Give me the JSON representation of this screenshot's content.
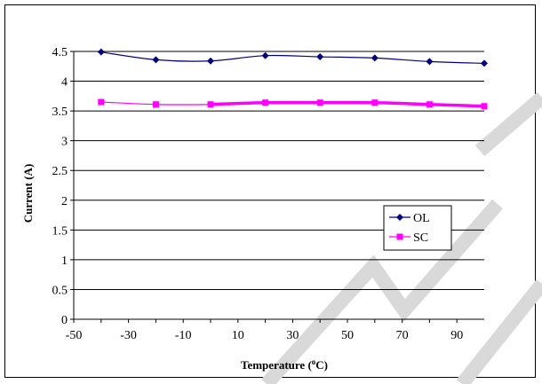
{
  "chart_data": {
    "type": "line",
    "title": "",
    "xlabel": "Temperature (",
    "xlabel_superscript": "o",
    "xlabel_suffix": "C)",
    "ylabel": "Current (A)",
    "xlim": [
      -50,
      100
    ],
    "ylim": [
      0,
      4.5
    ],
    "xticks": [
      -50,
      -30,
      -10,
      10,
      30,
      50,
      70,
      90
    ],
    "yticks": [
      0,
      0.5,
      1,
      1.5,
      2,
      2.5,
      3,
      3.5,
      4,
      4.5
    ],
    "ytick_labels": [
      "0",
      "0.5",
      "1",
      "1.5",
      "2",
      "2.5",
      "3",
      "3.5",
      "4",
      "4.5"
    ],
    "grid": "horizontal",
    "legend_position": "right",
    "series": [
      {
        "name": "OL",
        "color": "#000080",
        "marker": "diamond",
        "x": [
          -40,
          -20,
          0,
          20,
          40,
          60,
          80,
          100
        ],
        "values": [
          4.49,
          4.36,
          4.34,
          4.43,
          4.41,
          4.39,
          4.33,
          4.3
        ]
      },
      {
        "name": "SC",
        "color": "#ff00ff",
        "marker": "square",
        "x": [
          -40,
          -20,
          0,
          20,
          40,
          60,
          80,
          100
        ],
        "values": [
          3.65,
          3.61,
          3.61,
          3.64,
          3.64,
          3.64,
          3.61,
          3.58
        ]
      }
    ]
  }
}
